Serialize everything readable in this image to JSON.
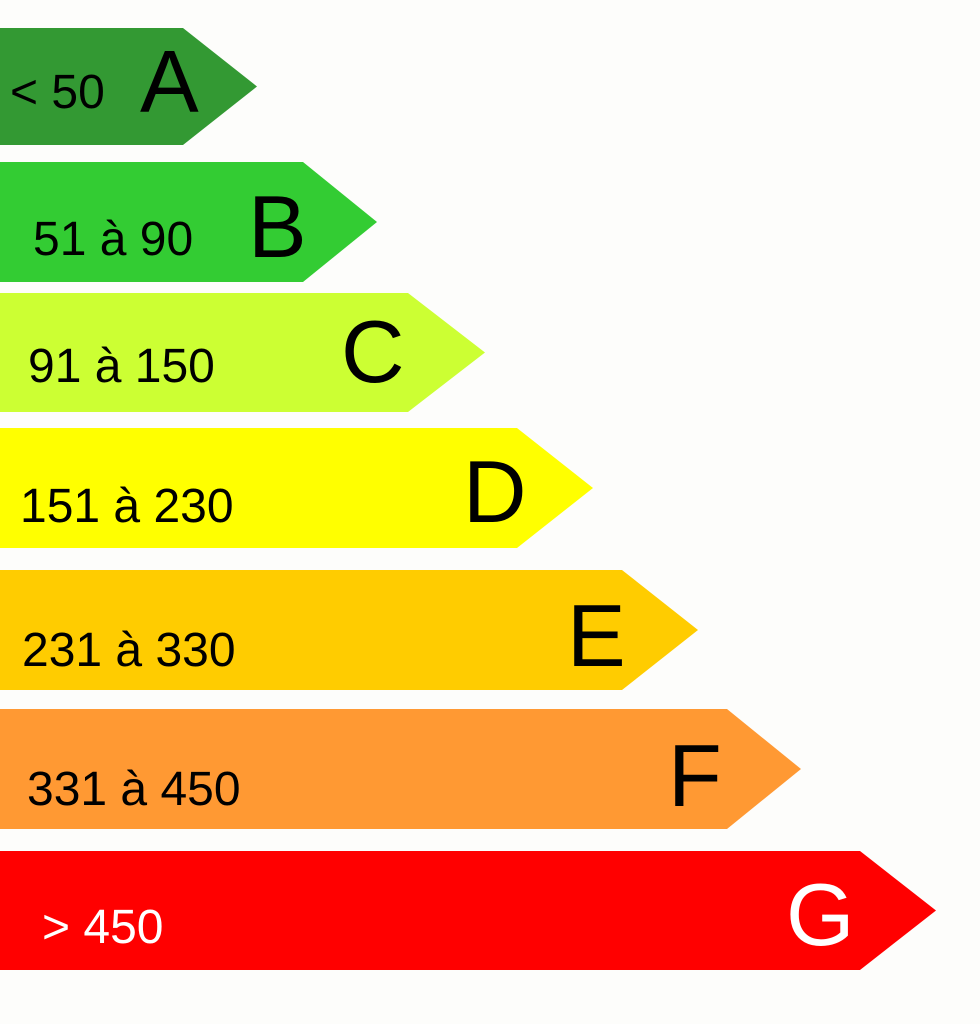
{
  "bands": [
    {
      "range": "< 50",
      "letter": "A",
      "color": "#339933",
      "text_color": "#000000"
    },
    {
      "range": "51 à 90",
      "letter": "B",
      "color": "#33cc33",
      "text_color": "#000000"
    },
    {
      "range": "91 à 150",
      "letter": "C",
      "color": "#ccff33",
      "text_color": "#000000"
    },
    {
      "range": "151 à 230",
      "letter": "D",
      "color": "#ffff00",
      "text_color": "#000000"
    },
    {
      "range": "231 à 330",
      "letter": "E",
      "color": "#ffcc00",
      "text_color": "#000000"
    },
    {
      "range": "331 à 450",
      "letter": "F",
      "color": "#ff9933",
      "text_color": "#000000"
    },
    {
      "range": "> 450",
      "letter": "G",
      "color": "#ff0000",
      "text_color": "#ffffff"
    }
  ]
}
